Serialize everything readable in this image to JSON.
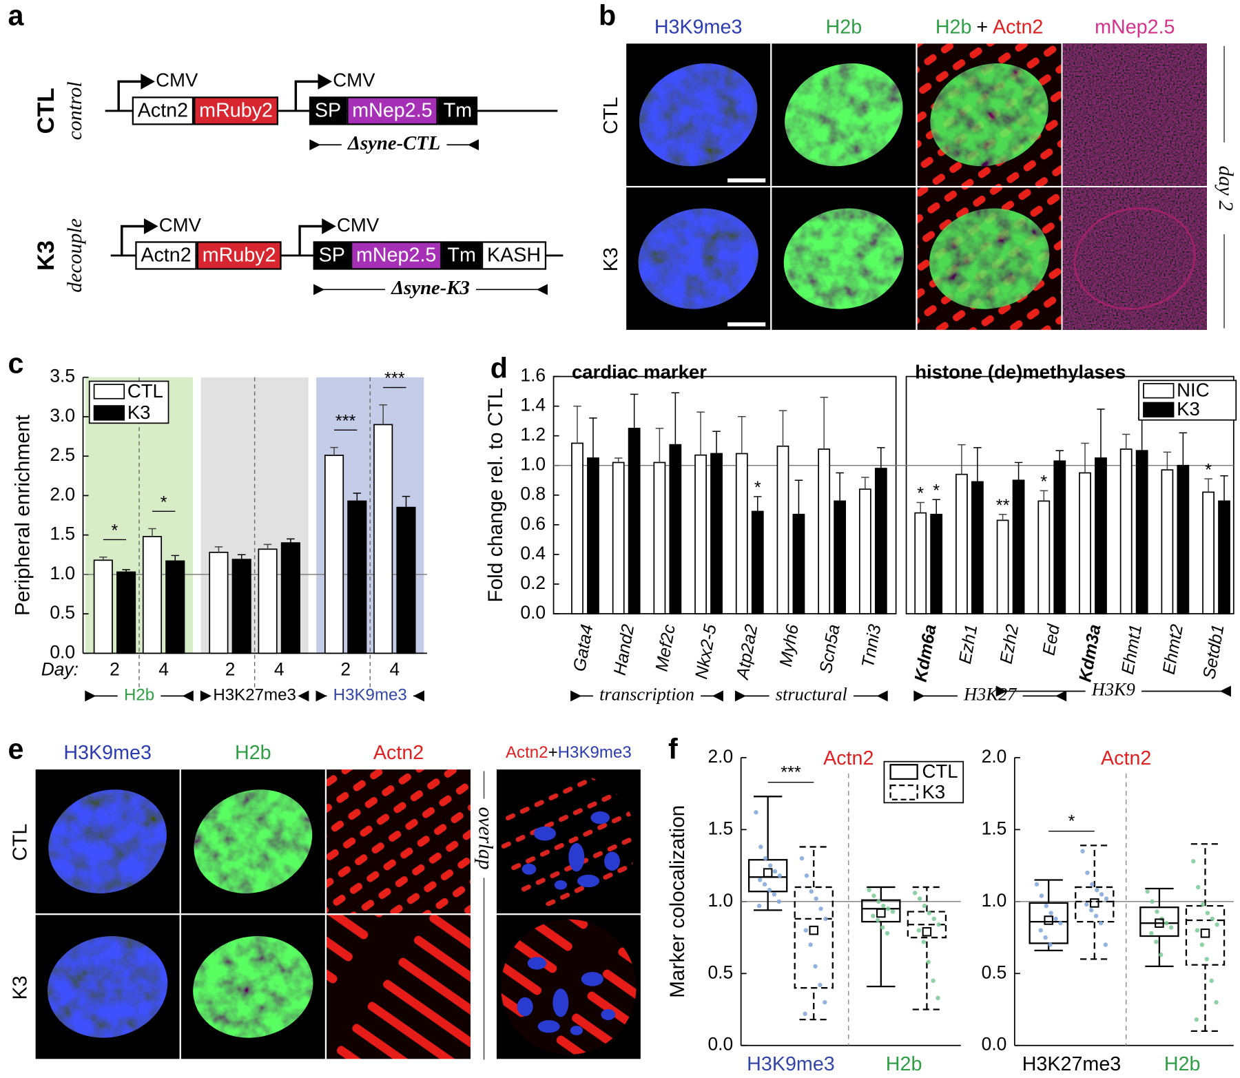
{
  "panel_labels": [
    "a",
    "b",
    "c",
    "d",
    "e",
    "f"
  ],
  "panel_a": {
    "constructs": [
      {
        "name": "CTL",
        "mode": "control",
        "promoters": [
          "CMV",
          "CMV"
        ],
        "cassettes": [
          [
            {
              "label": "Actn2",
              "color": "#ffffff"
            },
            {
              "label": "mRuby2",
              "color": "#d7262f"
            }
          ],
          [
            {
              "label": "SP",
              "color": "#000000"
            },
            {
              "label": "mNep2.5",
              "color": "#a630b5"
            },
            {
              "label": "Tm",
              "color": "#000000"
            }
          ]
        ],
        "fragment": "Δsyne-CTL"
      },
      {
        "name": "K3",
        "mode": "decouple",
        "promoters": [
          "CMV",
          "CMV"
        ],
        "cassettes": [
          [
            {
              "label": "Actn2",
              "color": "#ffffff"
            },
            {
              "label": "mRuby2",
              "color": "#d7262f"
            }
          ],
          [
            {
              "label": "SP",
              "color": "#000000"
            },
            {
              "label": "mNep2.5",
              "color": "#a630b5"
            },
            {
              "label": "Tm",
              "color": "#000000"
            },
            {
              "label": "KASH",
              "color": "#ffffff"
            }
          ]
        ],
        "fragment": "Δsyne-K3"
      }
    ]
  },
  "panel_b": {
    "headers": [
      [
        {
          "text": "H3K9me3",
          "color": "#2b3bb0"
        }
      ],
      [
        {
          "text": "H2b",
          "color": "#2e9e44"
        }
      ],
      [
        {
          "text": "H2b",
          "color": "#2e9e44"
        },
        {
          "text": "+",
          "color": "#000000"
        },
        {
          "text": "Actn2",
          "color": "#e02020"
        }
      ],
      [
        {
          "text": "mNep2.5",
          "color": "#d4308c"
        }
      ]
    ],
    "rows": [
      "CTL",
      "K3"
    ],
    "side_label": "day 2"
  },
  "panel_e": {
    "headers": [
      [
        {
          "text": "H3K9me3",
          "color": "#2b3bb0"
        }
      ],
      [
        {
          "text": "H2b",
          "color": "#2e9e44"
        }
      ],
      [
        {
          "text": "Actn2",
          "color": "#e02020"
        }
      ],
      [
        {
          "text": "Actn2",
          "color": "#e02020"
        },
        {
          "text": "+",
          "color": "#000000"
        },
        {
          "text": "H3K9me3",
          "color": "#2b3bb0"
        }
      ]
    ],
    "rows": [
      "CTL",
      "K3"
    ],
    "side_label": "overlap"
  },
  "chart_data": [
    {
      "type": "bar",
      "y_label": "Peripheral enrichment",
      "x_label": "Day:",
      "categories": [
        "2",
        "4",
        "2",
        "4",
        "2",
        "4"
      ],
      "groups": [
        {
          "name": "H2b",
          "color": "#2e9e44",
          "background": "#d9ecc8",
          "span": [
            0,
            1
          ]
        },
        {
          "name": "H3K27me3",
          "color": "#000000",
          "background": "#e1e1e1",
          "span": [
            2,
            3
          ]
        },
        {
          "name": "H3K9me3",
          "color": "#3346a8",
          "background": "#c5cce8",
          "span": [
            4,
            5
          ]
        }
      ],
      "series": [
        {
          "name": "CTL",
          "color": "#ffffff",
          "values": [
            1.18,
            1.48,
            1.28,
            1.32,
            2.51,
            2.9
          ],
          "errors": [
            0.04,
            0.1,
            0.07,
            0.06,
            0.1,
            0.25
          ]
        },
        {
          "name": "K3",
          "color": "#000000",
          "values": [
            1.03,
            1.17,
            1.19,
            1.4,
            1.93,
            1.85
          ],
          "errors": [
            0.03,
            0.07,
            0.06,
            0.05,
            0.1,
            0.14
          ]
        }
      ],
      "significance": [
        "*",
        "*",
        null,
        null,
        "***",
        "***"
      ],
      "ylim": [
        0,
        3.5
      ],
      "yticks": [
        {
          "value": 0,
          "label": "0.0"
        },
        0.5,
        {
          "value": 1,
          "label": "1.0"
        },
        1.5,
        {
          "value": 2,
          "label": "2.0"
        },
        2.5,
        {
          "value": 3,
          "label": "3.0"
        },
        3.5
      ],
      "reference_line": 1,
      "legend": "upper left"
    },
    {
      "type": "bar",
      "y_label": "Fold change rel. to CTL",
      "panels": [
        {
          "title": "cardiac marker",
          "span": [
            0,
            7
          ]
        },
        {
          "title": "histone (de)methylases",
          "span": [
            8,
            15
          ]
        }
      ],
      "categories": [
        "Gata4",
        "Hand2",
        "Mef2c",
        "Nkx2-5",
        "Atp2a2",
        "Myh6",
        "Scn5a",
        "Tnni3",
        "Kdm6a",
        "Ezh1",
        "Ezh2",
        "Eed",
        "Kdm3a",
        "Ehmt1",
        "Ehmt2",
        "Setdb1"
      ],
      "emphasis": [
        8,
        12
      ],
      "groups": [
        {
          "name": "transcription",
          "span": [
            0,
            3
          ]
        },
        {
          "name": "structural",
          "span": [
            4,
            7
          ]
        },
        {
          "name": "H3K27",
          "span": [
            8,
            11
          ]
        },
        {
          "name": "H3K9",
          "span": [
            10,
            15
          ]
        }
      ],
      "series": [
        {
          "name": "NIC",
          "color": "#ffffff",
          "values": [
            1.15,
            1.02,
            1.02,
            1.07,
            1.08,
            1.13,
            1.11,
            0.84,
            0.68,
            0.94,
            0.63,
            0.76,
            0.95,
            1.11,
            0.97,
            0.82
          ],
          "errors": [
            0.25,
            0.03,
            0.23,
            0.29,
            0.25,
            0.24,
            0.35,
            0.08,
            0.07,
            0.2,
            0.04,
            0.07,
            0.2,
            0.1,
            0.12,
            0.09
          ],
          "significance": [
            null,
            null,
            null,
            null,
            null,
            null,
            null,
            null,
            "*",
            null,
            "**",
            "*",
            null,
            null,
            null,
            "*"
          ]
        },
        {
          "name": "K3",
          "color": "#000000",
          "values": [
            1.05,
            1.25,
            1.14,
            1.08,
            0.69,
            0.67,
            0.76,
            0.98,
            0.67,
            0.89,
            0.9,
            1.03,
            1.05,
            1.1,
            1.0,
            0.76
          ],
          "errors": [
            0.27,
            0.23,
            0.35,
            0.15,
            0.1,
            0.23,
            0.19,
            0.14,
            0.1,
            0.23,
            0.12,
            0.07,
            0.33,
            0.22,
            0.22,
            0.17
          ],
          "significance": [
            null,
            null,
            null,
            null,
            "*",
            null,
            null,
            null,
            "*",
            null,
            null,
            null,
            null,
            null,
            null,
            null
          ]
        }
      ],
      "ylim": [
        0,
        1.6
      ],
      "yticks": [
        {
          "value": 0,
          "label": "0.0"
        },
        0.2,
        0.4,
        0.6,
        0.8,
        {
          "value": 1,
          "label": "1.0"
        },
        1.2,
        1.4,
        1.6
      ],
      "reference_line": 1,
      "legend": "upper right"
    },
    {
      "type": "box",
      "title": "Actn2",
      "title_color": "#e02020",
      "y_label": "Marker colocalization",
      "categories": [
        "H3K9me3",
        "H2b"
      ],
      "category_colors": [
        "#3346a8",
        "#2e9e44"
      ],
      "point_colors": [
        "#7fa6d9",
        "#79c995"
      ],
      "series": [
        {
          "name": "CTL",
          "style": "solid",
          "boxes": [
            {
              "low": 0.94,
              "q1": 1.07,
              "median": 1.17,
              "q3": 1.29,
              "high": 1.73,
              "mean": 1.2,
              "points": [
                1.62,
                1.38,
                1.3,
                1.25,
                1.21,
                1.18,
                1.15,
                1.12,
                1.08,
                1.05,
                1.0,
                0.97
              ]
            },
            {
              "low": 0.41,
              "q1": 0.86,
              "median": 0.95,
              "q3": 1.01,
              "high": 1.1,
              "mean": 0.92,
              "points": [
                1.08,
                1.04,
                1.0,
                0.97,
                0.95,
                0.93,
                0.9,
                0.87,
                0.82,
                0.78
              ]
            }
          ]
        },
        {
          "name": "K3",
          "style": "dashed",
          "boxes": [
            {
              "low": 0.18,
              "q1": 0.4,
              "median": 0.88,
              "q3": 1.1,
              "high": 1.38,
              "mean": 0.8,
              "points": [
                1.3,
                1.18,
                1.07,
                1.02,
                0.95,
                0.88,
                0.8,
                0.7,
                0.55,
                0.42,
                0.3,
                0.22
              ]
            },
            {
              "low": 0.25,
              "q1": 0.75,
              "median": 0.84,
              "q3": 0.93,
              "high": 1.1,
              "mean": 0.79,
              "points": [
                1.06,
                1.02,
                0.97,
                0.92,
                0.88,
                0.84,
                0.8,
                0.72,
                0.58,
                0.45,
                0.33
              ]
            }
          ]
        }
      ],
      "significance": [
        "***",
        null
      ],
      "ylim": [
        0,
        2
      ],
      "yticks": [
        {
          "value": 0,
          "label": "0.0"
        },
        0.5,
        {
          "value": 1,
          "label": "1.0"
        },
        1.5,
        {
          "value": 2,
          "label": "2.0"
        }
      ],
      "reference_line": 1,
      "legend": "upper right"
    },
    {
      "type": "box",
      "title": "Actn2",
      "title_color": "#e02020",
      "categories": [
        "H3K27me3",
        "H2b"
      ],
      "category_colors": [
        "#000000",
        "#2e9e44"
      ],
      "point_colors": [
        "#7fa6d9",
        "#79c995"
      ],
      "series": [
        {
          "style": "solid",
          "boxes": [
            {
              "low": 0.66,
              "q1": 0.71,
              "median": 0.86,
              "q3": 0.99,
              "high": 1.15,
              "mean": 0.87,
              "points": [
                1.12,
                1.04,
                0.97,
                0.92,
                0.88,
                0.85,
                0.8,
                0.75,
                0.7
              ]
            },
            {
              "low": 0.55,
              "q1": 0.76,
              "median": 0.85,
              "q3": 0.96,
              "high": 1.09,
              "mean": 0.85,
              "points": [
                1.07,
                1.0,
                0.93,
                0.88,
                0.85,
                0.82,
                0.78,
                0.72,
                0.63
              ]
            }
          ]
        },
        {
          "style": "dashed",
          "boxes": [
            {
              "low": 0.6,
              "q1": 0.86,
              "median": 1.0,
              "q3": 1.1,
              "high": 1.39,
              "mean": 0.99,
              "points": [
                1.35,
                1.2,
                1.12,
                1.08,
                1.05,
                1.02,
                0.98,
                0.94,
                0.9,
                0.85,
                0.7
              ]
            },
            {
              "low": 0.1,
              "q1": 0.56,
              "median": 0.87,
              "q3": 0.97,
              "high": 1.4,
              "mean": 0.78,
              "points": [
                1.28,
                1.1,
                0.98,
                0.92,
                0.88,
                0.84,
                0.8,
                0.7,
                0.6,
                0.45,
                0.3,
                0.18
              ]
            }
          ]
        }
      ],
      "significance": [
        "*",
        null
      ],
      "ylim": [
        0,
        2
      ],
      "yticks": [
        {
          "value": 0,
          "label": "0.0"
        },
        0.5,
        {
          "value": 1,
          "label": "1.0"
        },
        1.5,
        {
          "value": 2,
          "label": "2.0"
        }
      ],
      "reference_line": 1
    }
  ]
}
